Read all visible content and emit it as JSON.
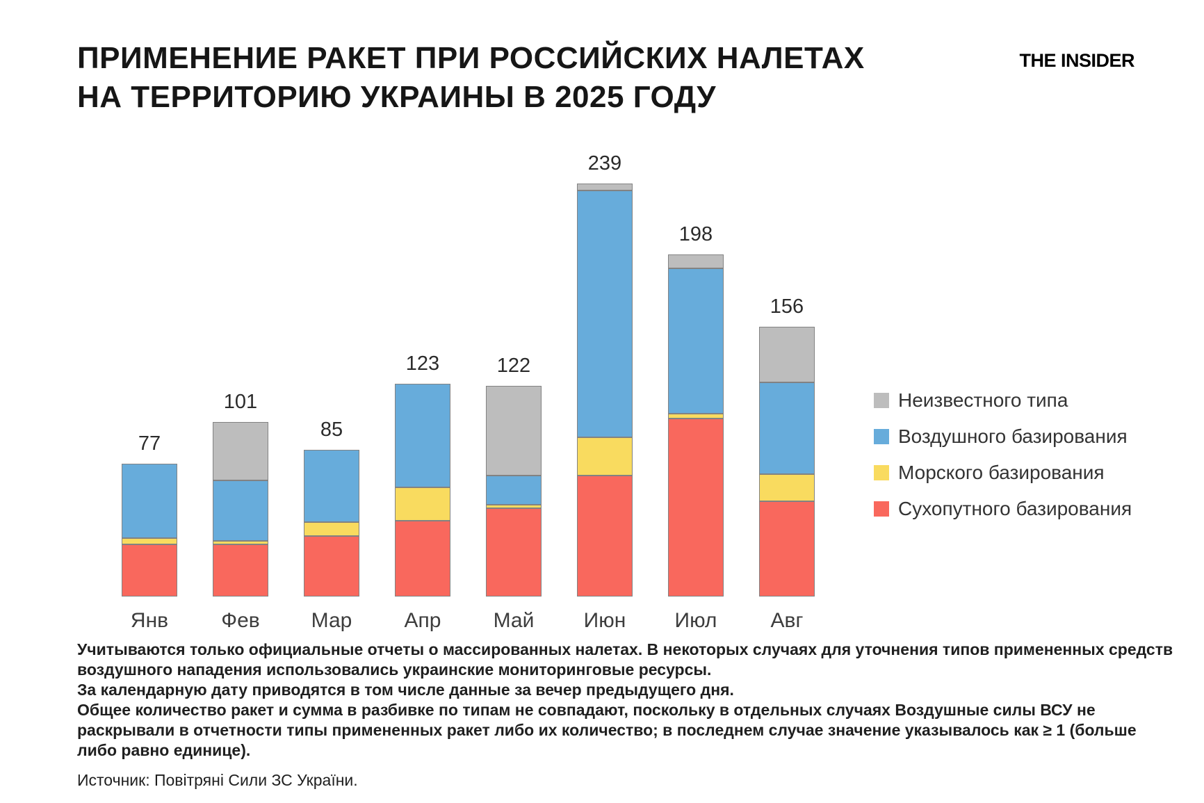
{
  "header": {
    "title": "ПРИМЕНЕНИЕ РАКЕТ ПРИ РОССИЙСКИХ НАЛЕТАХ\nНА ТЕРРИТОРИЮ УКРАИНЫ В 2025 ГОДУ",
    "logo": "THE INSIDER"
  },
  "chart_data": {
    "type": "bar",
    "stacked": true,
    "title": "ПРИМЕНЕНИЕ РАКЕТ ПРИ РОССИЙСКИХ НАЛЕТАХ НА ТЕРРИТОРИЮ УКРАИНЫ В 2025 ГОДУ",
    "categories": [
      "Янв",
      "Фев",
      "Мар",
      "Апр",
      "Май",
      "Июн",
      "Июл",
      "Авг"
    ],
    "totals": [
      77,
      101,
      85,
      123,
      122,
      239,
      198,
      156
    ],
    "series": [
      {
        "key": "land",
        "name": "Сухопутного базирования",
        "color": "#F9685D",
        "values": [
          30,
          30,
          35,
          44,
          51,
          70,
          103,
          55
        ]
      },
      {
        "key": "sea",
        "name": "Морского базирования",
        "color": "#F9DB5F",
        "values": [
          4,
          2,
          8,
          19,
          2,
          22,
          3,
          16
        ]
      },
      {
        "key": "air",
        "name": "Воздушного базирования",
        "color": "#67ACDB",
        "values": [
          43,
          35,
          42,
          60,
          17,
          143,
          84,
          53
        ]
      },
      {
        "key": "unknown",
        "name": "Неизвестного типа",
        "color": "#BDBDBD",
        "values": [
          0,
          34,
          0,
          0,
          52,
          4,
          8,
          32
        ]
      }
    ],
    "legend_order_top_to_bottom": [
      "Неизвестного типа",
      "Воздушного базирования",
      "Морского базирования",
      "Сухопутного базирования"
    ],
    "xlabel": "",
    "ylabel": "",
    "ylim": [
      0,
      250
    ],
    "grid": false,
    "legend_position": "right",
    "value_labels": "total above each bar"
  },
  "notes": {
    "p1": "Учитываются только официальные отчеты о массированных налетах. В некоторых случаях для уточнения типов примененных средств воздушного нападения использовались украинские мониторинговые ресурсы.",
    "p2": "За календарную дату приводятся в том числе данные за вечер предыдущего дня.",
    "p3": "Общее количество ракет и сумма в разбивке по типам не совпадают, поскольку в отдельных случаях Воздушные силы ВСУ не раскрывали в отчетности типы примененных ракет либо их количество; в последнем случае значение указывалось как ≥ 1 (больше либо равно единице).",
    "source": "Источник: Повітряні Сили ЗС України."
  }
}
